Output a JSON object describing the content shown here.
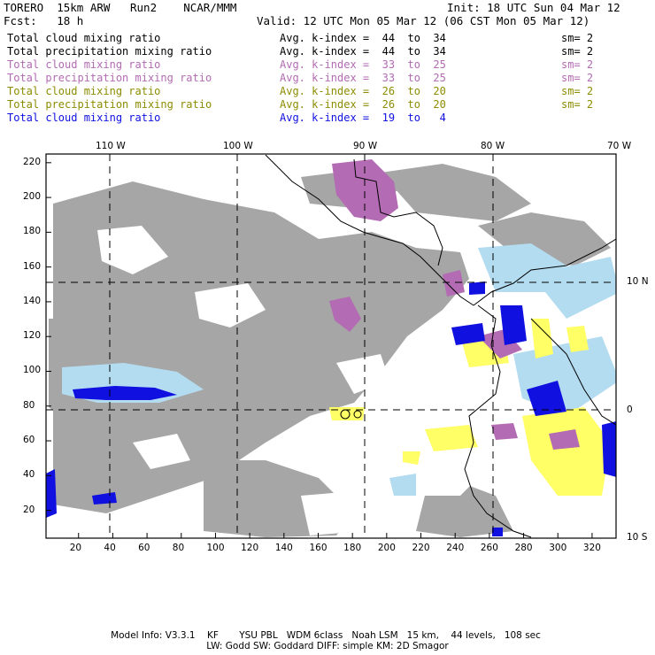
{
  "header": {
    "title": "TORERO  15km ARW   Run2    NCAR/MMM",
    "init": "Init: 18 UTC Sun 04 Mar 12",
    "fcst": "Fcst:   18 h",
    "valid": "Valid: 12 UTC Mon 05 Mar 12 (06 CST Mon 05 Mar 12)"
  },
  "legend": [
    {
      "field": "Total cloud mixing ratio",
      "index": "Avg. k-index =  44  to  34",
      "sm": "sm= 2",
      "color": "#000000"
    },
    {
      "field": "Total precipitation mixing ratio",
      "index": "Avg. k-index =  44  to  34",
      "sm": "sm= 2",
      "color": "#000000"
    },
    {
      "field": "Total cloud mixing ratio",
      "index": "Avg. k-index =  33  to  25",
      "sm": "sm= 2",
      "color": "#b36bb3"
    },
    {
      "field": "Total precipitation mixing ratio",
      "index": "Avg. k-index =  33  to  25",
      "sm": "sm= 2",
      "color": "#b36bb3"
    },
    {
      "field": "Total cloud mixing ratio",
      "index": "Avg. k-index =  26  to  20",
      "sm": "sm= 2",
      "color": "#8c8c00"
    },
    {
      "field": "Total precipitation mixing ratio",
      "index": "Avg. k-index =  26  to  20",
      "sm": "sm= 2",
      "color": "#8c8c00"
    },
    {
      "field": "Total cloud mixing ratio",
      "index": "Avg. k-index =  19  to   4",
      "sm": "",
      "color": "#1010e0"
    }
  ],
  "map": {
    "lon_labels": [
      "110 W",
      "100 W",
      "90 W",
      "80 W",
      "70 W"
    ],
    "lat_labels": [
      "10 N",
      "0",
      "10 S"
    ],
    "y_ticks": [
      "220",
      "200",
      "180",
      "160",
      "140",
      "120",
      "100",
      "80",
      "60",
      "40",
      "20"
    ],
    "x_ticks": [
      "20",
      "40",
      "60",
      "80",
      "100",
      "120",
      "140",
      "160",
      "180",
      "200",
      "220",
      "240",
      "260",
      "280",
      "300",
      "320"
    ],
    "colors": {
      "gray_cloud": "#a6a6a6",
      "purple_cloud": "#b36bb3",
      "yellow_cloud": "#ffff66",
      "light_blue_cloud": "#b4dcf0",
      "blue_cloud": "#1010e0"
    }
  },
  "footer": {
    "line1": "Model Info: V3.3.1    KF       YSU PBL   WDM 6class   Noah LSM   15 km,    44 levels,   108 sec",
    "line2": "LW: Godd SW: Goddard DIFF: simple KM: 2D Smagor"
  }
}
